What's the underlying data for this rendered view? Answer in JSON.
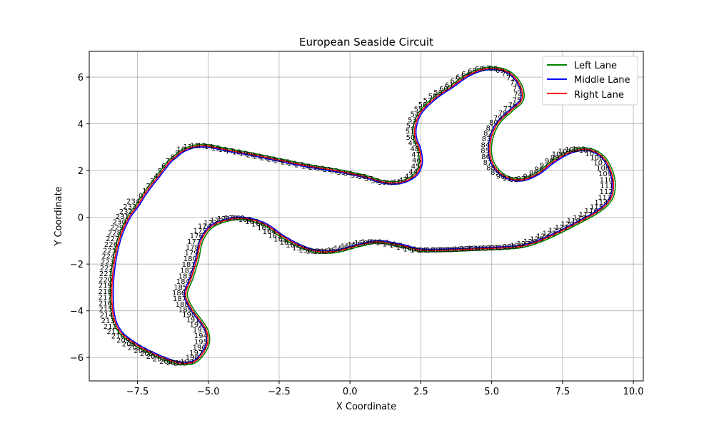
{
  "chart_data": {
    "type": "line",
    "title": "European Seaside Circuit",
    "xlabel": "X Coordinate",
    "ylabel": "Y Coordinate",
    "xlim": [
      -9.2,
      10.35
    ],
    "ylim": [
      -7.0,
      7.1
    ],
    "xticks": [
      -7.5,
      -5.0,
      -2.5,
      0.0,
      2.5,
      5.0,
      7.5,
      10.0
    ],
    "xtick_labels": [
      "−7.5",
      "−5.0",
      "−2.5",
      "0.0",
      "2.5",
      "5.0",
      "7.5",
      "10.0"
    ],
    "yticks": [
      -6,
      -4,
      -2,
      0,
      2,
      4,
      6
    ],
    "ytick_labels": [
      "−6",
      "−4",
      "−2",
      "0",
      "2",
      "4",
      "6"
    ],
    "grid": true,
    "legend_position": "top-right",
    "point_labels_every": 1,
    "waypoints": [
      [
        -7.3,
        0.9
      ],
      [
        -7.0,
        1.4
      ],
      [
        -6.8,
        1.7
      ],
      [
        -6.55,
        2.1
      ],
      [
        -6.35,
        2.4
      ],
      [
        -6.15,
        2.6
      ],
      [
        -5.95,
        2.8
      ],
      [
        -5.7,
        2.95
      ],
      [
        -5.4,
        3.05
      ],
      [
        -5.0,
        3.05
      ],
      [
        -4.6,
        2.95
      ],
      [
        -4.2,
        2.85
      ],
      [
        -3.5,
        2.7
      ],
      [
        -2.5,
        2.45
      ],
      [
        -1.5,
        2.2
      ],
      [
        -0.5,
        2.0
      ],
      [
        0.5,
        1.75
      ],
      [
        1.2,
        1.5
      ],
      [
        1.8,
        1.5
      ],
      [
        2.3,
        1.8
      ],
      [
        2.5,
        2.3
      ],
      [
        2.45,
        2.9
      ],
      [
        2.3,
        3.4
      ],
      [
        2.3,
        3.9
      ],
      [
        2.5,
        4.5
      ],
      [
        3.0,
        5.1
      ],
      [
        3.6,
        5.6
      ],
      [
        4.2,
        6.1
      ],
      [
        4.8,
        6.35
      ],
      [
        5.4,
        6.3
      ],
      [
        5.8,
        6.0
      ],
      [
        6.05,
        5.5
      ],
      [
        6.05,
        5.0
      ],
      [
        5.7,
        4.6
      ],
      [
        5.2,
        4.0
      ],
      [
        4.95,
        3.2
      ],
      [
        5.0,
        2.4
      ],
      [
        5.4,
        1.8
      ],
      [
        6.0,
        1.6
      ],
      [
        6.6,
        1.85
      ],
      [
        7.2,
        2.4
      ],
      [
        7.8,
        2.8
      ],
      [
        8.4,
        2.9
      ],
      [
        8.9,
        2.6
      ],
      [
        9.2,
        2.0
      ],
      [
        9.3,
        1.4
      ],
      [
        9.2,
        0.8
      ],
      [
        8.8,
        0.3
      ],
      [
        8.0,
        -0.25
      ],
      [
        7.0,
        -0.85
      ],
      [
        6.2,
        -1.2
      ],
      [
        5.5,
        -1.3
      ],
      [
        4.5,
        -1.35
      ],
      [
        3.5,
        -1.4
      ],
      [
        2.5,
        -1.4
      ],
      [
        1.8,
        -1.2
      ],
      [
        1.0,
        -1.05
      ],
      [
        0.3,
        -1.2
      ],
      [
        -0.5,
        -1.45
      ],
      [
        -1.2,
        -1.45
      ],
      [
        -1.8,
        -1.2
      ],
      [
        -2.4,
        -0.8
      ],
      [
        -3.0,
        -0.3
      ],
      [
        -3.7,
        -0.05
      ],
      [
        -4.3,
        -0.1
      ],
      [
        -4.9,
        -0.4
      ],
      [
        -5.25,
        -1.0
      ],
      [
        -5.4,
        -1.8
      ],
      [
        -5.6,
        -2.6
      ],
      [
        -5.8,
        -3.3
      ],
      [
        -5.6,
        -3.9
      ],
      [
        -5.3,
        -4.4
      ],
      [
        -5.05,
        -4.9
      ],
      [
        -5.05,
        -5.5
      ],
      [
        -5.4,
        -6.1
      ],
      [
        -5.8,
        -6.25
      ],
      [
        -6.3,
        -6.15
      ],
      [
        -7.0,
        -5.8
      ],
      [
        -7.6,
        -5.4
      ],
      [
        -8.1,
        -4.9
      ],
      [
        -8.35,
        -4.2
      ],
      [
        -8.4,
        -3.0
      ],
      [
        -8.3,
        -1.8
      ],
      [
        -8.1,
        -0.8
      ],
      [
        -7.8,
        0.0
      ],
      [
        -7.5,
        0.5
      ],
      [
        -7.3,
        0.9
      ]
    ],
    "series": [
      {
        "name": "Left Lane",
        "color": "#008000",
        "offset": 0.06
      },
      {
        "name": "Middle Lane",
        "color": "#0000ff",
        "offset": -0.05
      },
      {
        "name": "Right Lane",
        "color": "#ff0000",
        "offset": 0
      }
    ],
    "point_count": 235
  }
}
